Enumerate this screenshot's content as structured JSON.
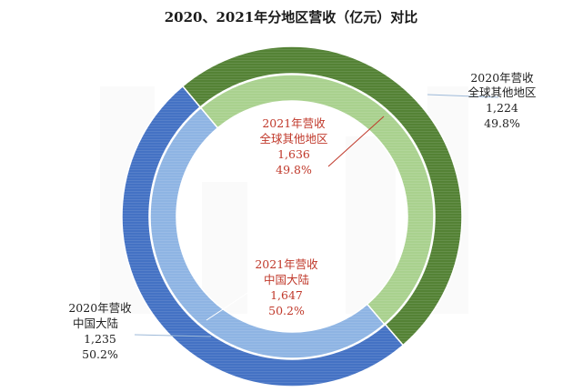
{
  "chart_data": {
    "type": "pie",
    "title": "2020、2021年分地区营收（亿元）对比",
    "categories": [
      "中国大陆",
      "全球其他地区"
    ],
    "series": [
      {
        "name": "2020年营收",
        "values": [
          1235,
          1224
        ],
        "value_labels": [
          "1,235",
          "1,224"
        ],
        "percent_labels": [
          "50.2%",
          "49.8%"
        ]
      },
      {
        "name": "2021年营收",
        "values": [
          1647,
          1636
        ],
        "value_labels": [
          "1,647",
          "1,636"
        ],
        "percent_labels": [
          "50.2%",
          "49.8%"
        ]
      }
    ],
    "legend": "none"
  },
  "colors": {
    "outer_mainland": "#4472c4",
    "outer_other": "#548235",
    "inner_mainland": "#8eb4e3",
    "inner_other": "#a9d18e",
    "inner_label": "#c0392b",
    "outer_label": "#222222"
  }
}
